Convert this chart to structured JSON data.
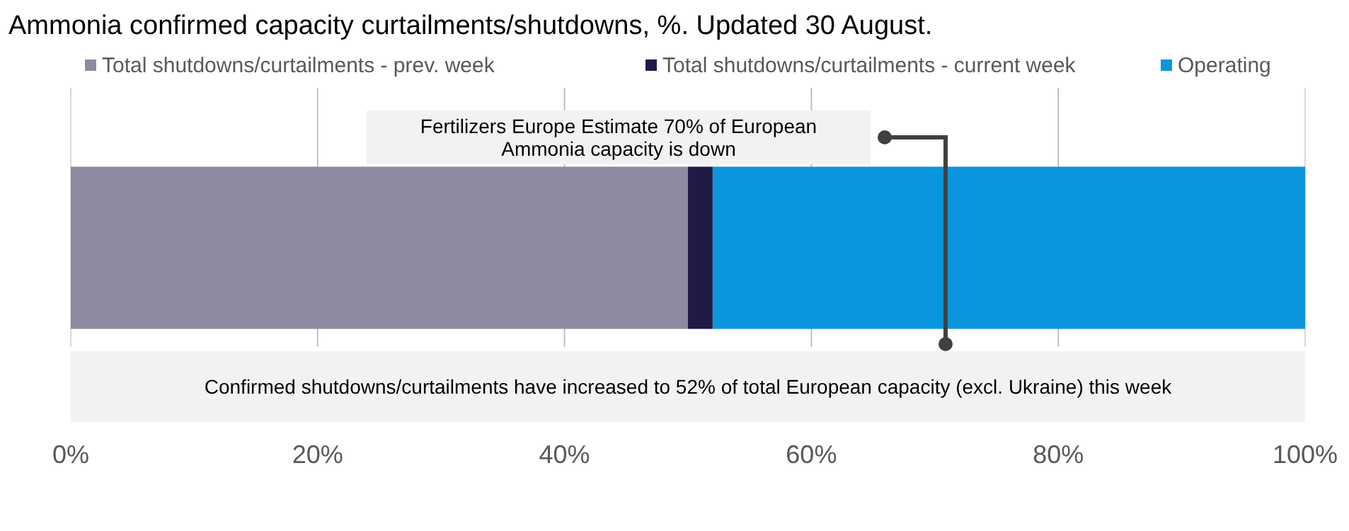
{
  "chart_data": {
    "type": "bar",
    "orientation": "horizontal",
    "stacked": true,
    "title": "Ammonia confirmed capacity curtailments/shutdowns, %. Updated 30 August.",
    "categories": [
      null
    ],
    "series": [
      {
        "name": "Total shutdowns/curtailments - prev. week",
        "color": "#8e8aa0",
        "values": [
          50
        ]
      },
      {
        "name": "Total shutdowns/curtailments - current week",
        "color": "#201a48",
        "values": [
          2
        ]
      },
      {
        "name": "Operating",
        "color": "#0a96dc",
        "values": [
          48
        ]
      }
    ],
    "xlim": [
      0,
      100
    ],
    "xticks": [
      {
        "value": 0,
        "label": "0%"
      },
      {
        "value": 20,
        "label": "20%"
      },
      {
        "value": 40,
        "label": "40%"
      },
      {
        "value": 60,
        "label": "60%"
      },
      {
        "value": 80,
        "label": "80%"
      },
      {
        "value": 100,
        "label": "100%"
      }
    ],
    "grid": "x",
    "legend": "top",
    "annotations": [
      "Fertilizers Europe Estimate 70% of European Ammonia capacity is down",
      "Confirmed shutdowns/curtailments have increased to 52% of total European capacity (excl. Ukraine) this week"
    ]
  }
}
